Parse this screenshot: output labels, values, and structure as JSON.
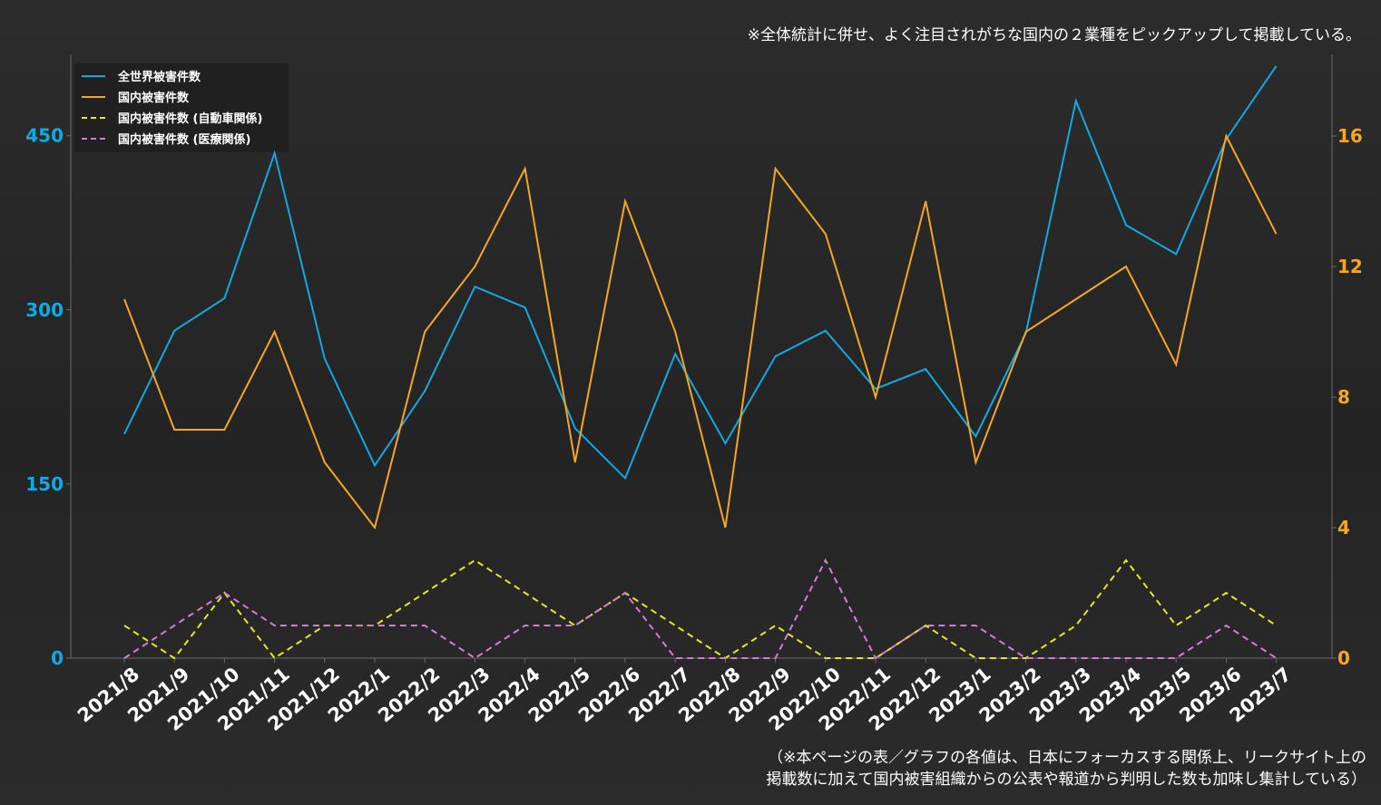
{
  "notes": {
    "top": "※全体統計に併せ、よく注目されがちな国内の２業種をピックアップして掲載している。",
    "bottom_line1": "（※本ページの表／グラフの各値は、日本にフォーカスする関係上、リークサイト上の",
    "bottom_line2": "掲載数に加えて国内被害組織からの公表や報道から判明した数も加味し集計している）"
  },
  "colors": {
    "global": "#11a9e2",
    "domestic": "#f5a623",
    "auto": "#e8e81e",
    "medical": "#d77ad8",
    "axis_left": "#11a9e2",
    "axis_right": "#f5a623",
    "legend_bg": "#1e1e1e"
  },
  "chart_data": {
    "type": "line",
    "categories": [
      "2021/8",
      "2021/9",
      "2021/10",
      "2021/11",
      "2021/12",
      "2022/1",
      "2022/2",
      "2022/3",
      "2022/4",
      "2022/5",
      "2022/6",
      "2022/7",
      "2022/8",
      "2022/9",
      "2022/10",
      "2022/11",
      "2022/12",
      "2023/1",
      "2023/2",
      "2023/3",
      "2023/4",
      "2023/5",
      "2023/6",
      "2023/7"
    ],
    "y_left": {
      "ticks": [
        "0",
        "150",
        "300",
        "450"
      ],
      "range": [
        0,
        520
      ]
    },
    "y_right": {
      "ticks": [
        "0",
        "4",
        "8",
        "12",
        "16"
      ],
      "range": [
        0,
        18.5
      ]
    },
    "grid": false,
    "legend_position": "top-left",
    "series": [
      {
        "name": "全世界被害件数",
        "axis": "left",
        "style": "solid",
        "values": [
          193,
          282,
          310,
          435,
          258,
          166,
          230,
          320,
          302,
          198,
          155,
          262,
          185,
          260,
          282,
          232,
          249,
          191,
          280,
          480,
          373,
          348,
          447,
          510
        ]
      },
      {
        "name": "国内被害件数",
        "axis": "right",
        "style": "solid",
        "values": [
          11,
          7,
          7,
          10,
          6,
          4,
          10,
          12,
          15,
          6,
          14,
          10,
          4,
          15,
          13,
          8,
          14,
          6,
          10,
          11,
          12,
          9,
          16,
          13
        ]
      },
      {
        "name": "国内被害件数 (自動車関係)",
        "axis": "right",
        "style": "dashed",
        "values": [
          1,
          0,
          2,
          0,
          1,
          1,
          2,
          3,
          2,
          1,
          2,
          1,
          0,
          1,
          0,
          0,
          1,
          0,
          0,
          1,
          3,
          1,
          2,
          1
        ]
      },
      {
        "name": "国内被害件数 (医療関係)",
        "axis": "right",
        "style": "dashed",
        "values": [
          0,
          1,
          2,
          1,
          1,
          1,
          1,
          0,
          1,
          1,
          2,
          0,
          0,
          0,
          3,
          0,
          1,
          1,
          0,
          0,
          0,
          0,
          1,
          0
        ]
      }
    ]
  }
}
